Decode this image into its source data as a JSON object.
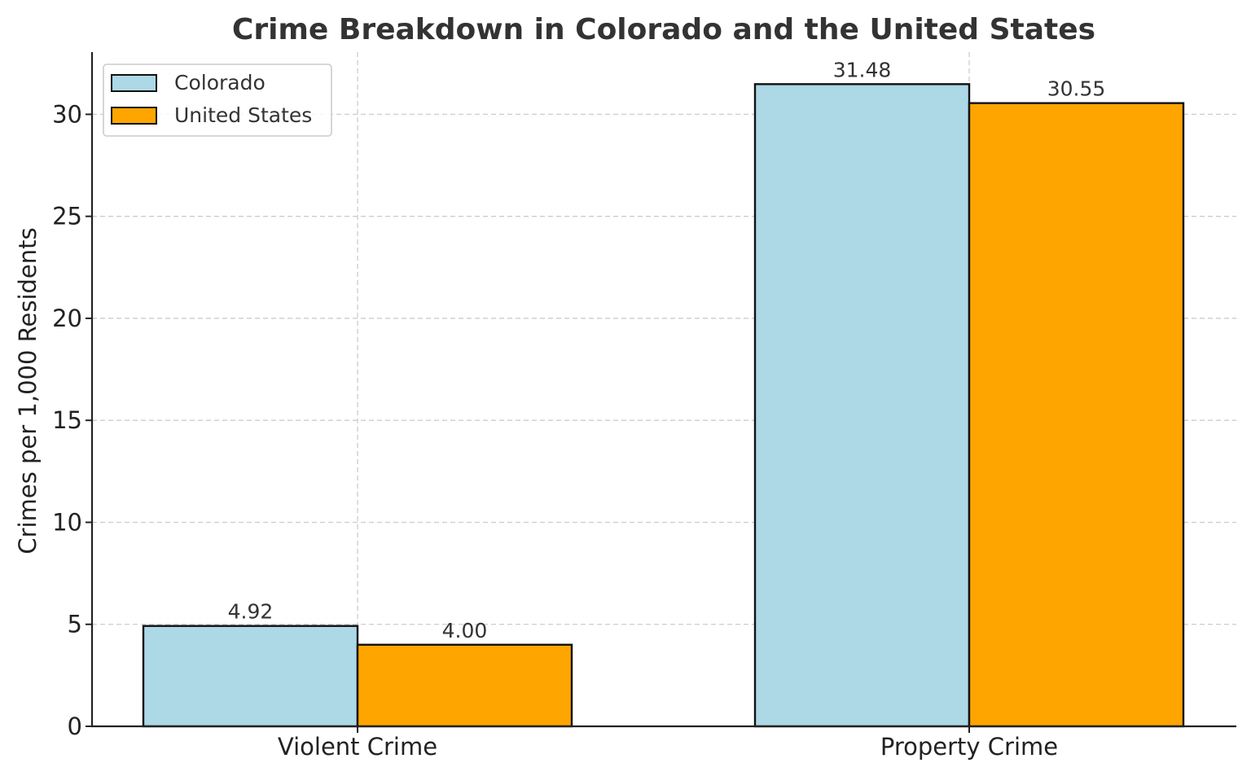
{
  "colors": {
    "colorado": "#add8e6",
    "united_states": "#ffa500"
  },
  "chart_data": {
    "type": "bar",
    "title": "Crime Breakdown in Colorado and the United States",
    "xlabel": "",
    "ylabel": "Crimes per 1,000 Residents",
    "categories": [
      "Violent Crime",
      "Property Crime"
    ],
    "series": [
      {
        "name": "Colorado",
        "values": [
          4.92,
          31.48
        ],
        "labels": [
          "4.92",
          "31.48"
        ]
      },
      {
        "name": "United States",
        "values": [
          4.0,
          30.55
        ],
        "labels": [
          "4.00",
          "30.55"
        ]
      }
    ],
    "ylim": [
      0,
      33.05
    ],
    "yticks": [
      0,
      5,
      10,
      15,
      20,
      25,
      30
    ],
    "ytick_labels": [
      "0",
      "5",
      "10",
      "15",
      "20",
      "25",
      "30"
    ],
    "grid": true,
    "legend": "top-left"
  }
}
